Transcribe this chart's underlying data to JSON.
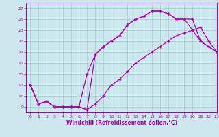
{
  "line1_x": [
    0,
    1,
    2,
    3,
    4,
    5,
    6,
    7,
    8,
    9,
    10,
    11,
    12,
    13,
    14,
    15,
    16,
    17,
    18,
    19,
    20,
    21,
    22,
    23
  ],
  "line1_y": [
    13,
    9.5,
    10,
    9,
    9,
    9,
    9,
    8.5,
    18.5,
    20,
    21,
    22,
    24,
    25,
    25.5,
    26.5,
    26.5,
    26,
    25,
    25,
    25,
    21,
    20,
    19
  ],
  "line2_x": [
    0,
    1,
    2,
    3,
    4,
    5,
    6,
    7,
    8,
    9,
    10,
    11,
    12,
    13,
    14,
    15,
    16,
    17,
    18,
    19,
    20,
    21,
    22,
    23
  ],
  "line2_y": [
    13,
    9.5,
    10,
    9,
    9,
    9,
    9,
    15,
    18.5,
    20,
    21,
    22,
    24,
    25,
    25.5,
    26.5,
    26.5,
    26,
    25,
    25,
    23,
    21,
    20,
    19
  ],
  "line3_x": [
    0,
    1,
    2,
    3,
    4,
    5,
    6,
    7,
    8,
    9,
    10,
    11,
    12,
    13,
    14,
    15,
    16,
    17,
    18,
    19,
    20,
    21,
    22,
    23
  ],
  "line3_y": [
    13,
    9.5,
    10,
    9,
    9,
    9,
    9,
    8.5,
    9.5,
    11,
    13,
    14,
    15.5,
    17,
    18,
    19,
    20,
    21,
    22,
    22.5,
    23,
    23.5,
    21,
    19
  ],
  "color": "#aa00aa",
  "bg_color": "#cce8ee",
  "grid_color": "#aacccc",
  "xlabel": "Windchill (Refroidissement éolien,°C)",
  "ylim": [
    8,
    28
  ],
  "xlim": [
    -0.5,
    23
  ],
  "yticks": [
    9,
    11,
    13,
    15,
    17,
    19,
    21,
    23,
    25,
    27
  ],
  "xticks": [
    0,
    1,
    2,
    3,
    4,
    5,
    6,
    7,
    8,
    9,
    10,
    11,
    12,
    13,
    14,
    15,
    16,
    17,
    18,
    19,
    20,
    21,
    22,
    23
  ],
  "marker": "+"
}
